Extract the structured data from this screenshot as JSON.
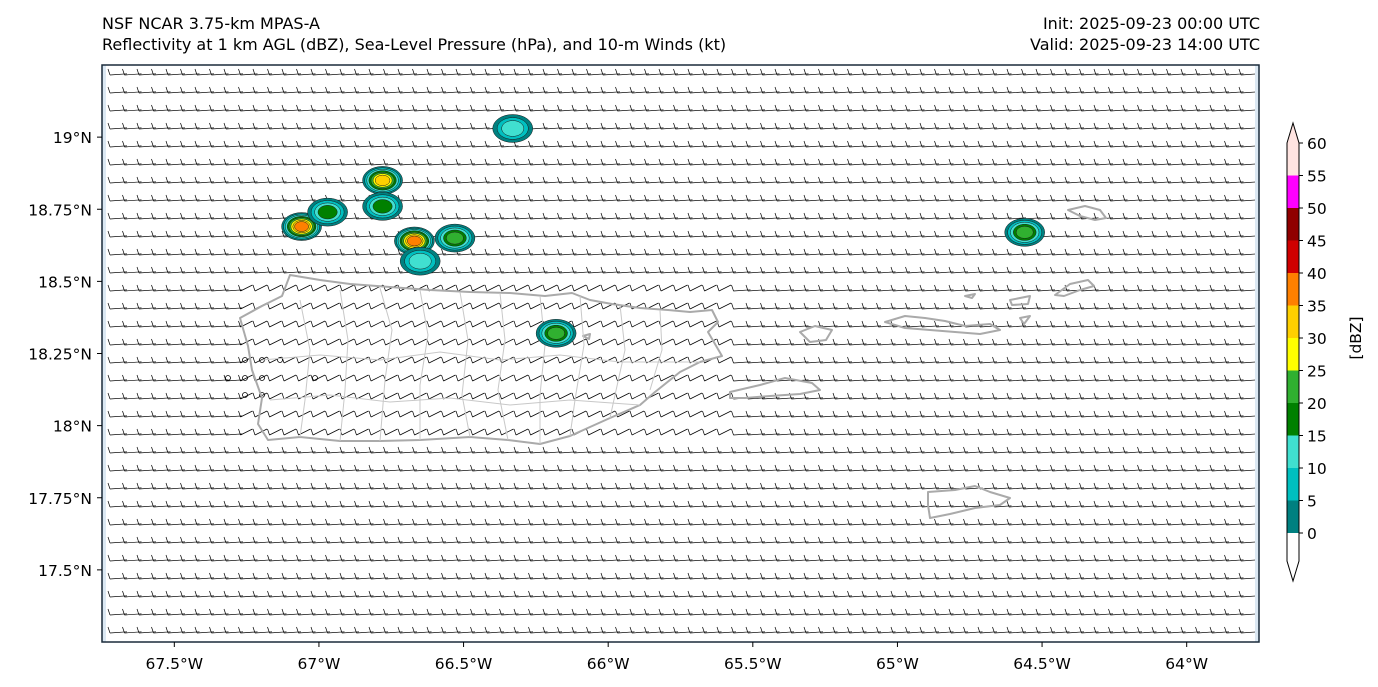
{
  "title": {
    "line1": "NSF NCAR 3.75-km MPAS-A",
    "line2": "Reflectivity at 1 km AGL (dBZ), Sea-Level Pressure (hPa), and 10-m Winds (kt)",
    "init": "Init: 2025-09-23 00:00 UTC",
    "valid": "Valid: 2025-09-23 14:00 UTC"
  },
  "map": {
    "lon_range": [
      -67.75,
      -63.75
    ],
    "lat_range": [
      17.25,
      19.25
    ],
    "x_ticks": [
      {
        "lon": -67.5,
        "label": "67.5°W"
      },
      {
        "lon": -67.0,
        "label": "67°W"
      },
      {
        "lon": -66.5,
        "label": "66.5°W"
      },
      {
        "lon": -66.0,
        "label": "66°W"
      },
      {
        "lon": -65.5,
        "label": "65.5°W"
      },
      {
        "lon": -65.0,
        "label": "65°W"
      },
      {
        "lon": -64.5,
        "label": "64.5°W"
      },
      {
        "lon": -64.0,
        "label": "64°W"
      }
    ],
    "y_ticks": [
      {
        "lat": 19.0,
        "label": "19°N"
      },
      {
        "lat": 18.75,
        "label": "18.75°N"
      },
      {
        "lat": 18.5,
        "label": "18.5°N"
      },
      {
        "lat": 18.25,
        "label": "18.25°N"
      },
      {
        "lat": 18.0,
        "label": "18°N"
      },
      {
        "lat": 17.75,
        "label": "17.75°N"
      },
      {
        "lat": 17.5,
        "label": "17.5°N"
      }
    ],
    "storm_cells": [
      {
        "lon": -67.06,
        "lat": 18.69,
        "max_dbz": 35
      },
      {
        "lon": -66.97,
        "lat": 18.74,
        "max_dbz": 15
      },
      {
        "lon": -66.78,
        "lat": 18.85,
        "max_dbz": 30
      },
      {
        "lon": -66.78,
        "lat": 18.76,
        "max_dbz": 15
      },
      {
        "lon": -66.67,
        "lat": 18.64,
        "max_dbz": 35
      },
      {
        "lon": -66.53,
        "lat": 18.65,
        "max_dbz": 20
      },
      {
        "lon": -66.65,
        "lat": 18.57,
        "max_dbz": 10
      },
      {
        "lon": -66.33,
        "lat": 19.03,
        "max_dbz": 10
      },
      {
        "lon": -66.18,
        "lat": 18.32,
        "max_dbz": 20
      },
      {
        "lon": -64.56,
        "lat": 18.67,
        "max_dbz": 20
      }
    ],
    "colors": {
      "coast": "#aaaaaa",
      "barb": "#000000",
      "frame": "#1a2a3a",
      "land_edge": "#dbe8f3"
    }
  },
  "colorbar": {
    "label": "[dBZ]",
    "levels": [
      0,
      5,
      10,
      15,
      20,
      25,
      30,
      35,
      40,
      45,
      50,
      55,
      60
    ],
    "colors": [
      "#008080",
      "#00c0c0",
      "#40e0d0",
      "#008000",
      "#30b030",
      "#ffff00",
      "#ffd000",
      "#ff8000",
      "#d00000",
      "#900000",
      "#ff00ff",
      "#ffe4e1"
    ]
  }
}
